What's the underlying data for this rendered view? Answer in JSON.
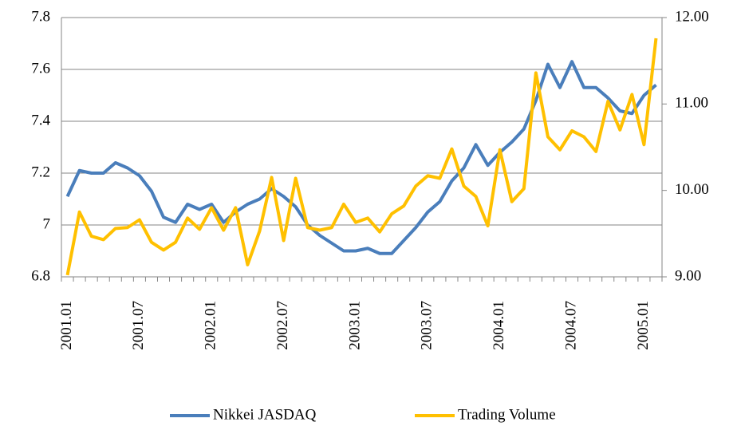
{
  "chart_data": {
    "type": "line",
    "categories": [
      "2001.01",
      null,
      null,
      null,
      null,
      null,
      "2001.07",
      null,
      null,
      null,
      null,
      null,
      "2002.01",
      null,
      null,
      null,
      null,
      null,
      "2002.07",
      null,
      null,
      null,
      null,
      null,
      "2003.01",
      null,
      null,
      null,
      null,
      null,
      "2003.07",
      null,
      null,
      null,
      null,
      null,
      "2004.01",
      null,
      null,
      null,
      null,
      null,
      "2004.07",
      null,
      null,
      null,
      null,
      null,
      "2005.01",
      null
    ],
    "series": [
      {
        "name": "Nikkei JASDAQ",
        "color": "#4a7ebb",
        "values": [
          7.11,
          7.21,
          7.2,
          7.2,
          7.24,
          7.22,
          7.19,
          7.13,
          7.03,
          7.01,
          7.08,
          7.06,
          7.08,
          7.01,
          7.05,
          7.08,
          7.1,
          7.14,
          7.11,
          7.07,
          7.0,
          6.96,
          6.93,
          6.9,
          6.9,
          6.91,
          6.89,
          6.89,
          6.94,
          6.99,
          7.05,
          7.09,
          7.17,
          7.22,
          7.31,
          7.23,
          7.28,
          7.32,
          7.37,
          7.48,
          7.62,
          7.53,
          7.63,
          7.53,
          7.53,
          7.49,
          7.44,
          7.43,
          7.5,
          7.54
        ]
      },
      {
        "name": "Trading Volume",
        "color": "#ffc000",
        "axis": "y2",
        "values": [
          9.02,
          9.75,
          9.47,
          9.43,
          9.56,
          9.57,
          9.66,
          9.4,
          9.31,
          9.4,
          9.68,
          9.55,
          9.8,
          9.54,
          9.8,
          9.14,
          9.53,
          10.15,
          9.42,
          10.14,
          9.57,
          9.54,
          9.57,
          9.84,
          9.63,
          9.68,
          9.52,
          9.73,
          9.82,
          10.05,
          10.17,
          10.14,
          10.48,
          10.05,
          9.93,
          9.59,
          10.47,
          9.87,
          10.02,
          11.36,
          10.62,
          10.47,
          10.69,
          10.62,
          10.45,
          11.03,
          10.7,
          11.11,
          10.53,
          11.76
        ]
      }
    ],
    "ylim": [
      6.8,
      7.8
    ],
    "yticks": [
      6.8,
      7,
      7.2,
      7.4,
      7.6,
      7.8
    ],
    "y2lim": [
      9,
      12
    ],
    "y2ticks": [
      {
        "value": 9,
        "label": "9.00"
      },
      {
        "value": 10,
        "label": "10.00"
      },
      {
        "value": 11,
        "label": "11.00"
      },
      {
        "value": 12,
        "label": "12.00"
      }
    ],
    "grid": true,
    "legend": "bottom"
  }
}
